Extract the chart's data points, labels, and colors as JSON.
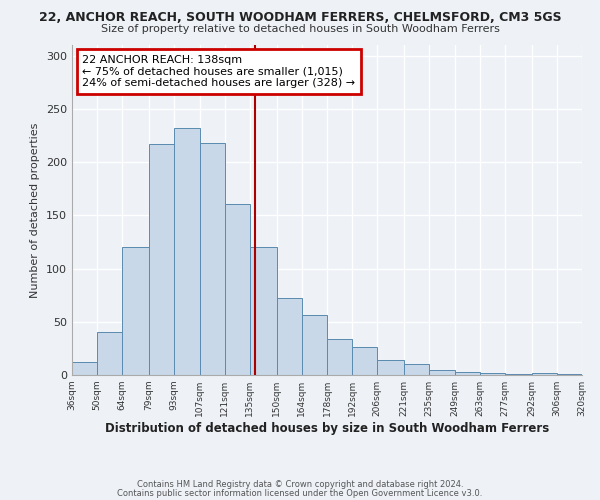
{
  "title1": "22, ANCHOR REACH, SOUTH WOODHAM FERRERS, CHELMSFORD, CM3 5GS",
  "title2": "Size of property relative to detached houses in South Woodham Ferrers",
  "xlabel": "Distribution of detached houses by size in South Woodham Ferrers",
  "ylabel": "Number of detached properties",
  "footnote1": "Contains HM Land Registry data © Crown copyright and database right 2024.",
  "footnote2": "Contains public sector information licensed under the Open Government Licence v3.0.",
  "bin_edges": [
    36,
    50,
    64,
    79,
    93,
    107,
    121,
    135,
    150,
    164,
    178,
    192,
    206,
    221,
    235,
    249,
    263,
    277,
    292,
    306,
    320
  ],
  "bin_labels": [
    "36sqm",
    "50sqm",
    "64sqm",
    "79sqm",
    "93sqm",
    "107sqm",
    "121sqm",
    "135sqm",
    "150sqm",
    "164sqm",
    "178sqm",
    "192sqm",
    "206sqm",
    "221sqm",
    "235sqm",
    "249sqm",
    "263sqm",
    "277sqm",
    "292sqm",
    "306sqm",
    "320sqm"
  ],
  "counts": [
    12,
    40,
    120,
    217,
    232,
    218,
    161,
    120,
    72,
    56,
    34,
    26,
    14,
    10,
    5,
    3,
    2,
    1,
    2,
    1
  ],
  "bar_color": "#c8d8e8",
  "bar_edge_color": "#5a8ab0",
  "vline_x": 138,
  "vline_color": "#aa0000",
  "annotation_title": "22 ANCHOR REACH: 138sqm",
  "annotation_line1": "← 75% of detached houses are smaller (1,015)",
  "annotation_line2": "24% of semi-detached houses are larger (328) →",
  "annotation_box_color": "#cc0000",
  "background_color": "#eef2f7",
  "ylim": [
    0,
    310
  ],
  "yticks": [
    0,
    50,
    100,
    150,
    200,
    250,
    300
  ]
}
